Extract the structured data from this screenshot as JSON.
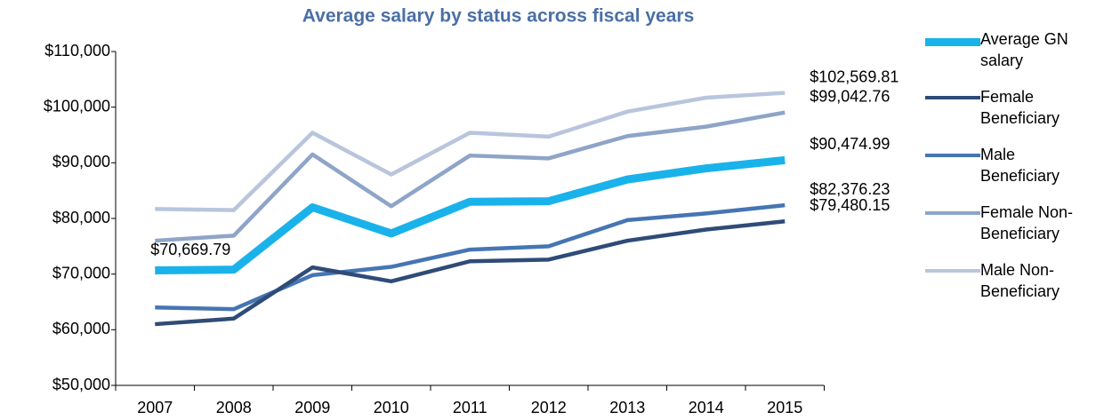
{
  "chart_data": {
    "type": "line",
    "title": "Average salary by status across fiscal years",
    "categories": [
      "2007",
      "2008",
      "2009",
      "2010",
      "2011",
      "2012",
      "2013",
      "2014",
      "2015"
    ],
    "series": [
      {
        "name": "Average GN salary",
        "color": "#1ab2ea",
        "values": [
          70669.79,
          70800,
          82000,
          77300,
          83000,
          83100,
          87000,
          89000,
          90474.99
        ],
        "value_labels": [
          "$70,669.79",
          null,
          null,
          null,
          null,
          null,
          null,
          null,
          "$90,474.99"
        ]
      },
      {
        "name": "Female Beneficiary",
        "color": "#2f4b78",
        "values": [
          61000,
          62000,
          71200,
          68700,
          72300,
          72600,
          76000,
          78000,
          79480.15
        ],
        "value_labels": [
          null,
          null,
          null,
          null,
          null,
          null,
          null,
          null,
          "$79,480.15"
        ]
      },
      {
        "name": "Male Beneficiary",
        "color": "#4675b3",
        "values": [
          64000,
          63700,
          69800,
          71300,
          74400,
          75000,
          79700,
          80900,
          82376.23
        ],
        "value_labels": [
          null,
          null,
          null,
          null,
          null,
          null,
          null,
          null,
          "$82,376.23"
        ]
      },
      {
        "name": "Female Non-Beneficiary",
        "color": "#8ea4c8",
        "values": [
          76000,
          76900,
          91500,
          82200,
          91300,
          90800,
          94800,
          96500,
          99042.76
        ],
        "value_labels": [
          null,
          null,
          null,
          null,
          null,
          null,
          null,
          null,
          "$99,042.76"
        ]
      },
      {
        "name": "Male Non-Beneficiary",
        "color": "#b8c5dc",
        "values": [
          81700,
          81500,
          95400,
          87900,
          95400,
          94700,
          99200,
          101700,
          102569.81
        ],
        "value_labels": [
          null,
          null,
          null,
          null,
          null,
          null,
          null,
          null,
          "$102,569.81"
        ]
      }
    ],
    "ylim": [
      50000,
      110000
    ],
    "yticks": [
      {
        "value": 50000,
        "label": "$50,000"
      },
      {
        "value": 60000,
        "label": "$60,000"
      },
      {
        "value": 70000,
        "label": "$70,000"
      },
      {
        "value": 80000,
        "label": "$80,000"
      },
      {
        "value": 90000,
        "label": "$90,000"
      },
      {
        "value": 100000,
        "label": "$100,000"
      },
      {
        "value": 110000,
        "label": "$110,000"
      }
    ],
    "grid": false,
    "legend": "right"
  }
}
